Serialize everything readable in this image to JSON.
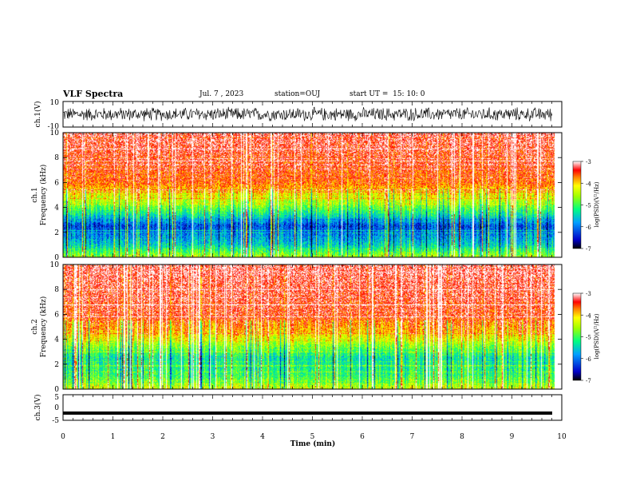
{
  "header": {
    "title": "VLF Spectra",
    "date": "Jul. 7 , 2023",
    "station": "station=OUJ",
    "start": "start UT =  15: 10: 0"
  },
  "chart_data": [
    {
      "type": "line",
      "panel": "ch1-waveform",
      "ylabel": "ch.1(V)",
      "ylim": [
        -10,
        10
      ],
      "yticks": [
        "10",
        "-10"
      ],
      "xlim": [
        0,
        10
      ],
      "note_level": "waveform fluctuates roughly between -6 and 6 V",
      "amplitude": 6
    },
    {
      "type": "heatmap",
      "panel": "ch1-spectrogram",
      "ylabel": "ch.1 Frequency (kHz)",
      "ylim": [
        0,
        10
      ],
      "yticks": [
        "0",
        "2",
        "4",
        "6",
        "8",
        "10"
      ],
      "xlim": [
        0,
        10
      ],
      "data_end_min": 9.85,
      "colorbar": {
        "label": "log(PSD)(V²/Hz)",
        "range": [
          -7,
          -3
        ],
        "ticks": [
          "-3",
          "-4",
          "-5",
          "-6",
          "-7"
        ]
      },
      "profile": [
        [
          0,
          -4.5
        ],
        [
          1,
          -5.5
        ],
        [
          2.5,
          -6.2
        ],
        [
          3.5,
          -5.2
        ],
        [
          4.5,
          -4.4
        ],
        [
          6,
          -3.6
        ],
        [
          10,
          -3.2
        ]
      ]
    },
    {
      "type": "heatmap",
      "panel": "ch2-spectrogram",
      "ylabel": "ch.2 Frequency (kHz)",
      "ylim": [
        0,
        10
      ],
      "yticks": [
        "0",
        "2",
        "4",
        "6",
        "8",
        "10"
      ],
      "xlim": [
        0,
        10
      ],
      "data_end_min": 9.85,
      "colorbar": {
        "label": "log(PSD)(V²/Hz)",
        "range": [
          -7,
          -3
        ],
        "ticks": [
          "-3",
          "-4",
          "-5",
          "-6",
          "-7"
        ]
      },
      "profile": [
        [
          0,
          -4.3
        ],
        [
          1,
          -5.0
        ],
        [
          2.5,
          -5.3
        ],
        [
          3.5,
          -4.6
        ],
        [
          4.5,
          -3.9
        ],
        [
          6,
          -3.4
        ],
        [
          10,
          -3.2
        ]
      ]
    },
    {
      "type": "line",
      "panel": "ch3-waveform",
      "ylabel": "ch.3(V)",
      "ylim": [
        -5,
        5
      ],
      "yticks": [
        "5",
        "0",
        "-5"
      ],
      "xlim": [
        0,
        10
      ],
      "level": -2.2
    }
  ],
  "xaxis": {
    "label": "Time (min)",
    "ticks": [
      "0",
      "1",
      "2",
      "3",
      "4",
      "5",
      "6",
      "7",
      "8",
      "9",
      "10"
    ]
  }
}
